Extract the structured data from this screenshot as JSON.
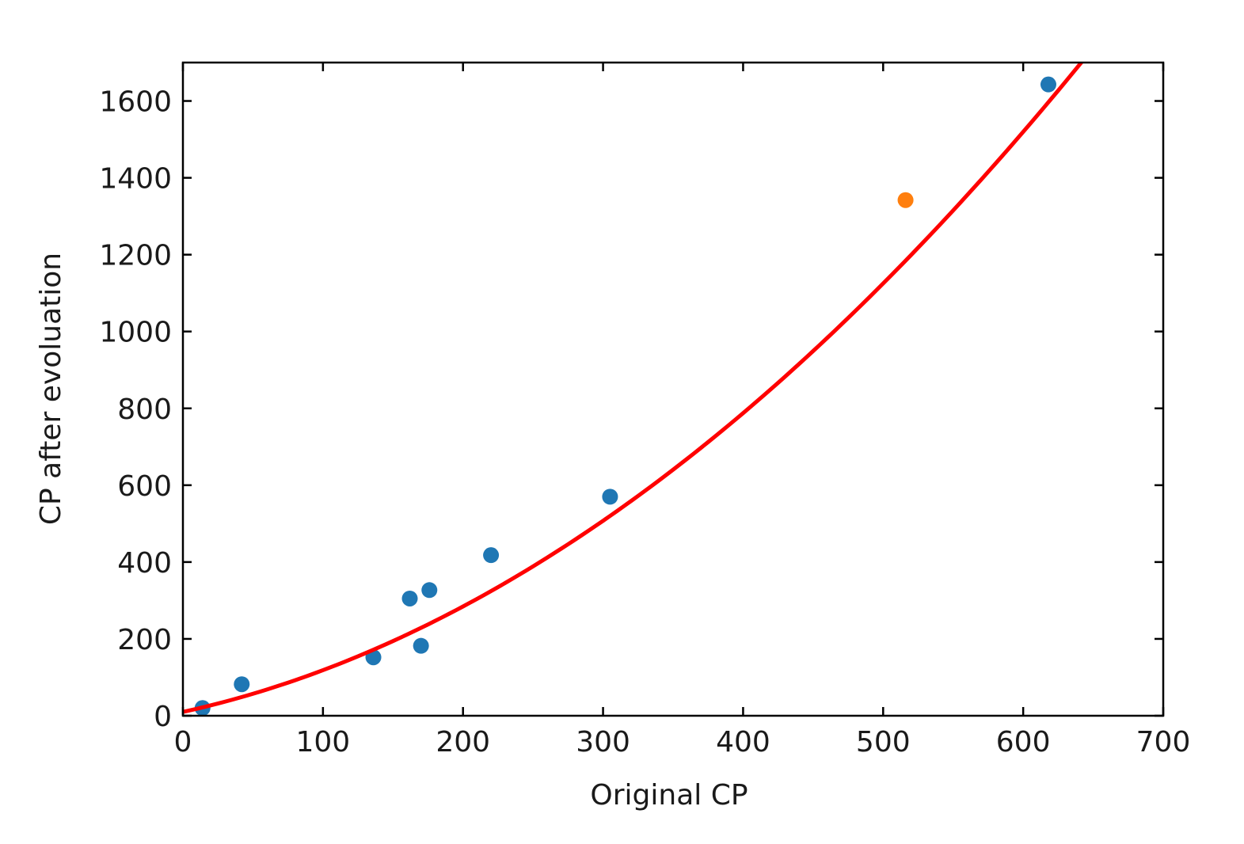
{
  "chart_data": {
    "type": "scatter",
    "title": "",
    "xlabel": "Original CP",
    "ylabel": "CP after evoluation",
    "xlim": [
      0,
      700
    ],
    "ylim": [
      0,
      1700
    ],
    "x_ticks": [
      0,
      100,
      200,
      300,
      400,
      500,
      600,
      700
    ],
    "y_ticks": [
      0,
      200,
      400,
      600,
      800,
      1000,
      1200,
      1400,
      1600
    ],
    "grid": false,
    "legend": false,
    "series": [
      {
        "type": "scatter",
        "color": "#1f77b4",
        "points": [
          {
            "x": 14,
            "y": 20
          },
          {
            "x": 42,
            "y": 82
          },
          {
            "x": 136,
            "y": 152
          },
          {
            "x": 162,
            "y": 305
          },
          {
            "x": 170,
            "y": 182
          },
          {
            "x": 176,
            "y": 327
          },
          {
            "x": 220,
            "y": 418
          },
          {
            "x": 305,
            "y": 570
          },
          {
            "x": 618,
            "y": 1643
          }
        ]
      },
      {
        "type": "scatter",
        "color": "#ff7f0e",
        "points": [
          {
            "x": 516,
            "y": 1342
          }
        ]
      },
      {
        "type": "line",
        "color": "#ff0000",
        "curve": {
          "kind": "quadratic",
          "c0": 10,
          "c1": 0.8,
          "c2": 0.00286,
          "x_start": 0,
          "x_end": 700
        }
      }
    ]
  }
}
